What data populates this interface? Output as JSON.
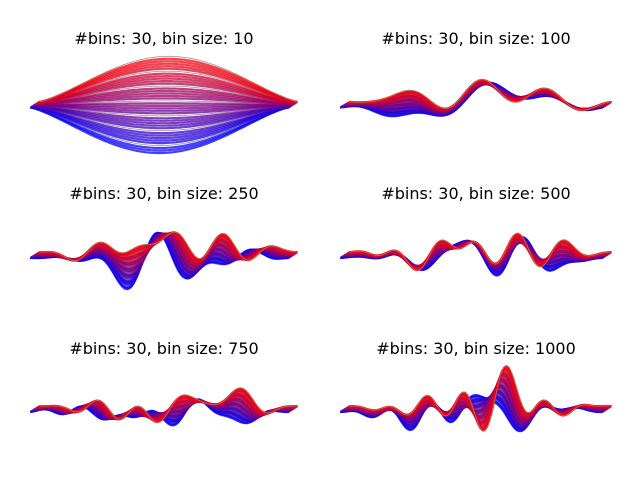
{
  "figure": {
    "background": "#ffffff",
    "colors": {
      "first_line": "#0000ff",
      "last_line": "#ff0000",
      "highlight": "#ffffff"
    }
  },
  "chart_data": [
    {
      "type": "area",
      "title": "#bins: 30, bin size: 10",
      "bins": 30,
      "bin_size": 10,
      "lines": 40,
      "axes": "off"
    },
    {
      "type": "area",
      "title": "#bins: 30, bin size: 100",
      "bins": 30,
      "bin_size": 100,
      "lines": 40,
      "axes": "off"
    },
    {
      "type": "area",
      "title": "#bins: 30, bin size: 250",
      "bins": 30,
      "bin_size": 250,
      "lines": 40,
      "axes": "off"
    },
    {
      "type": "area",
      "title": "#bins: 30, bin size: 500",
      "bins": 30,
      "bin_size": 500,
      "lines": 40,
      "axes": "off"
    },
    {
      "type": "area",
      "title": "#bins: 30, bin size: 750",
      "bins": 30,
      "bin_size": 750,
      "lines": 40,
      "axes": "off"
    },
    {
      "type": "area",
      "title": "#bins: 30, bin size: 1000",
      "bins": 30,
      "bin_size": 1000,
      "lines": 40,
      "axes": "off"
    }
  ]
}
